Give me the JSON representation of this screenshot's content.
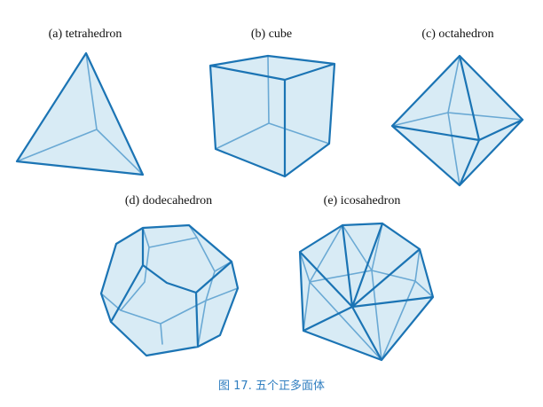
{
  "labels": {
    "tetrahedron": "(a) tetrahedron",
    "cube": "(b) cube",
    "octahedron": "(c) octahedron",
    "dodecahedron": "(d) dodecahedron",
    "icosahedron": "(e) icosahedron"
  },
  "caption": "图 17. 五个正多面体",
  "colors": {
    "edge_front": "#1b74b4",
    "edge_back": "#6aa9d4",
    "face_fill": "#d6eaf4",
    "caption": "#2f7ec0"
  }
}
